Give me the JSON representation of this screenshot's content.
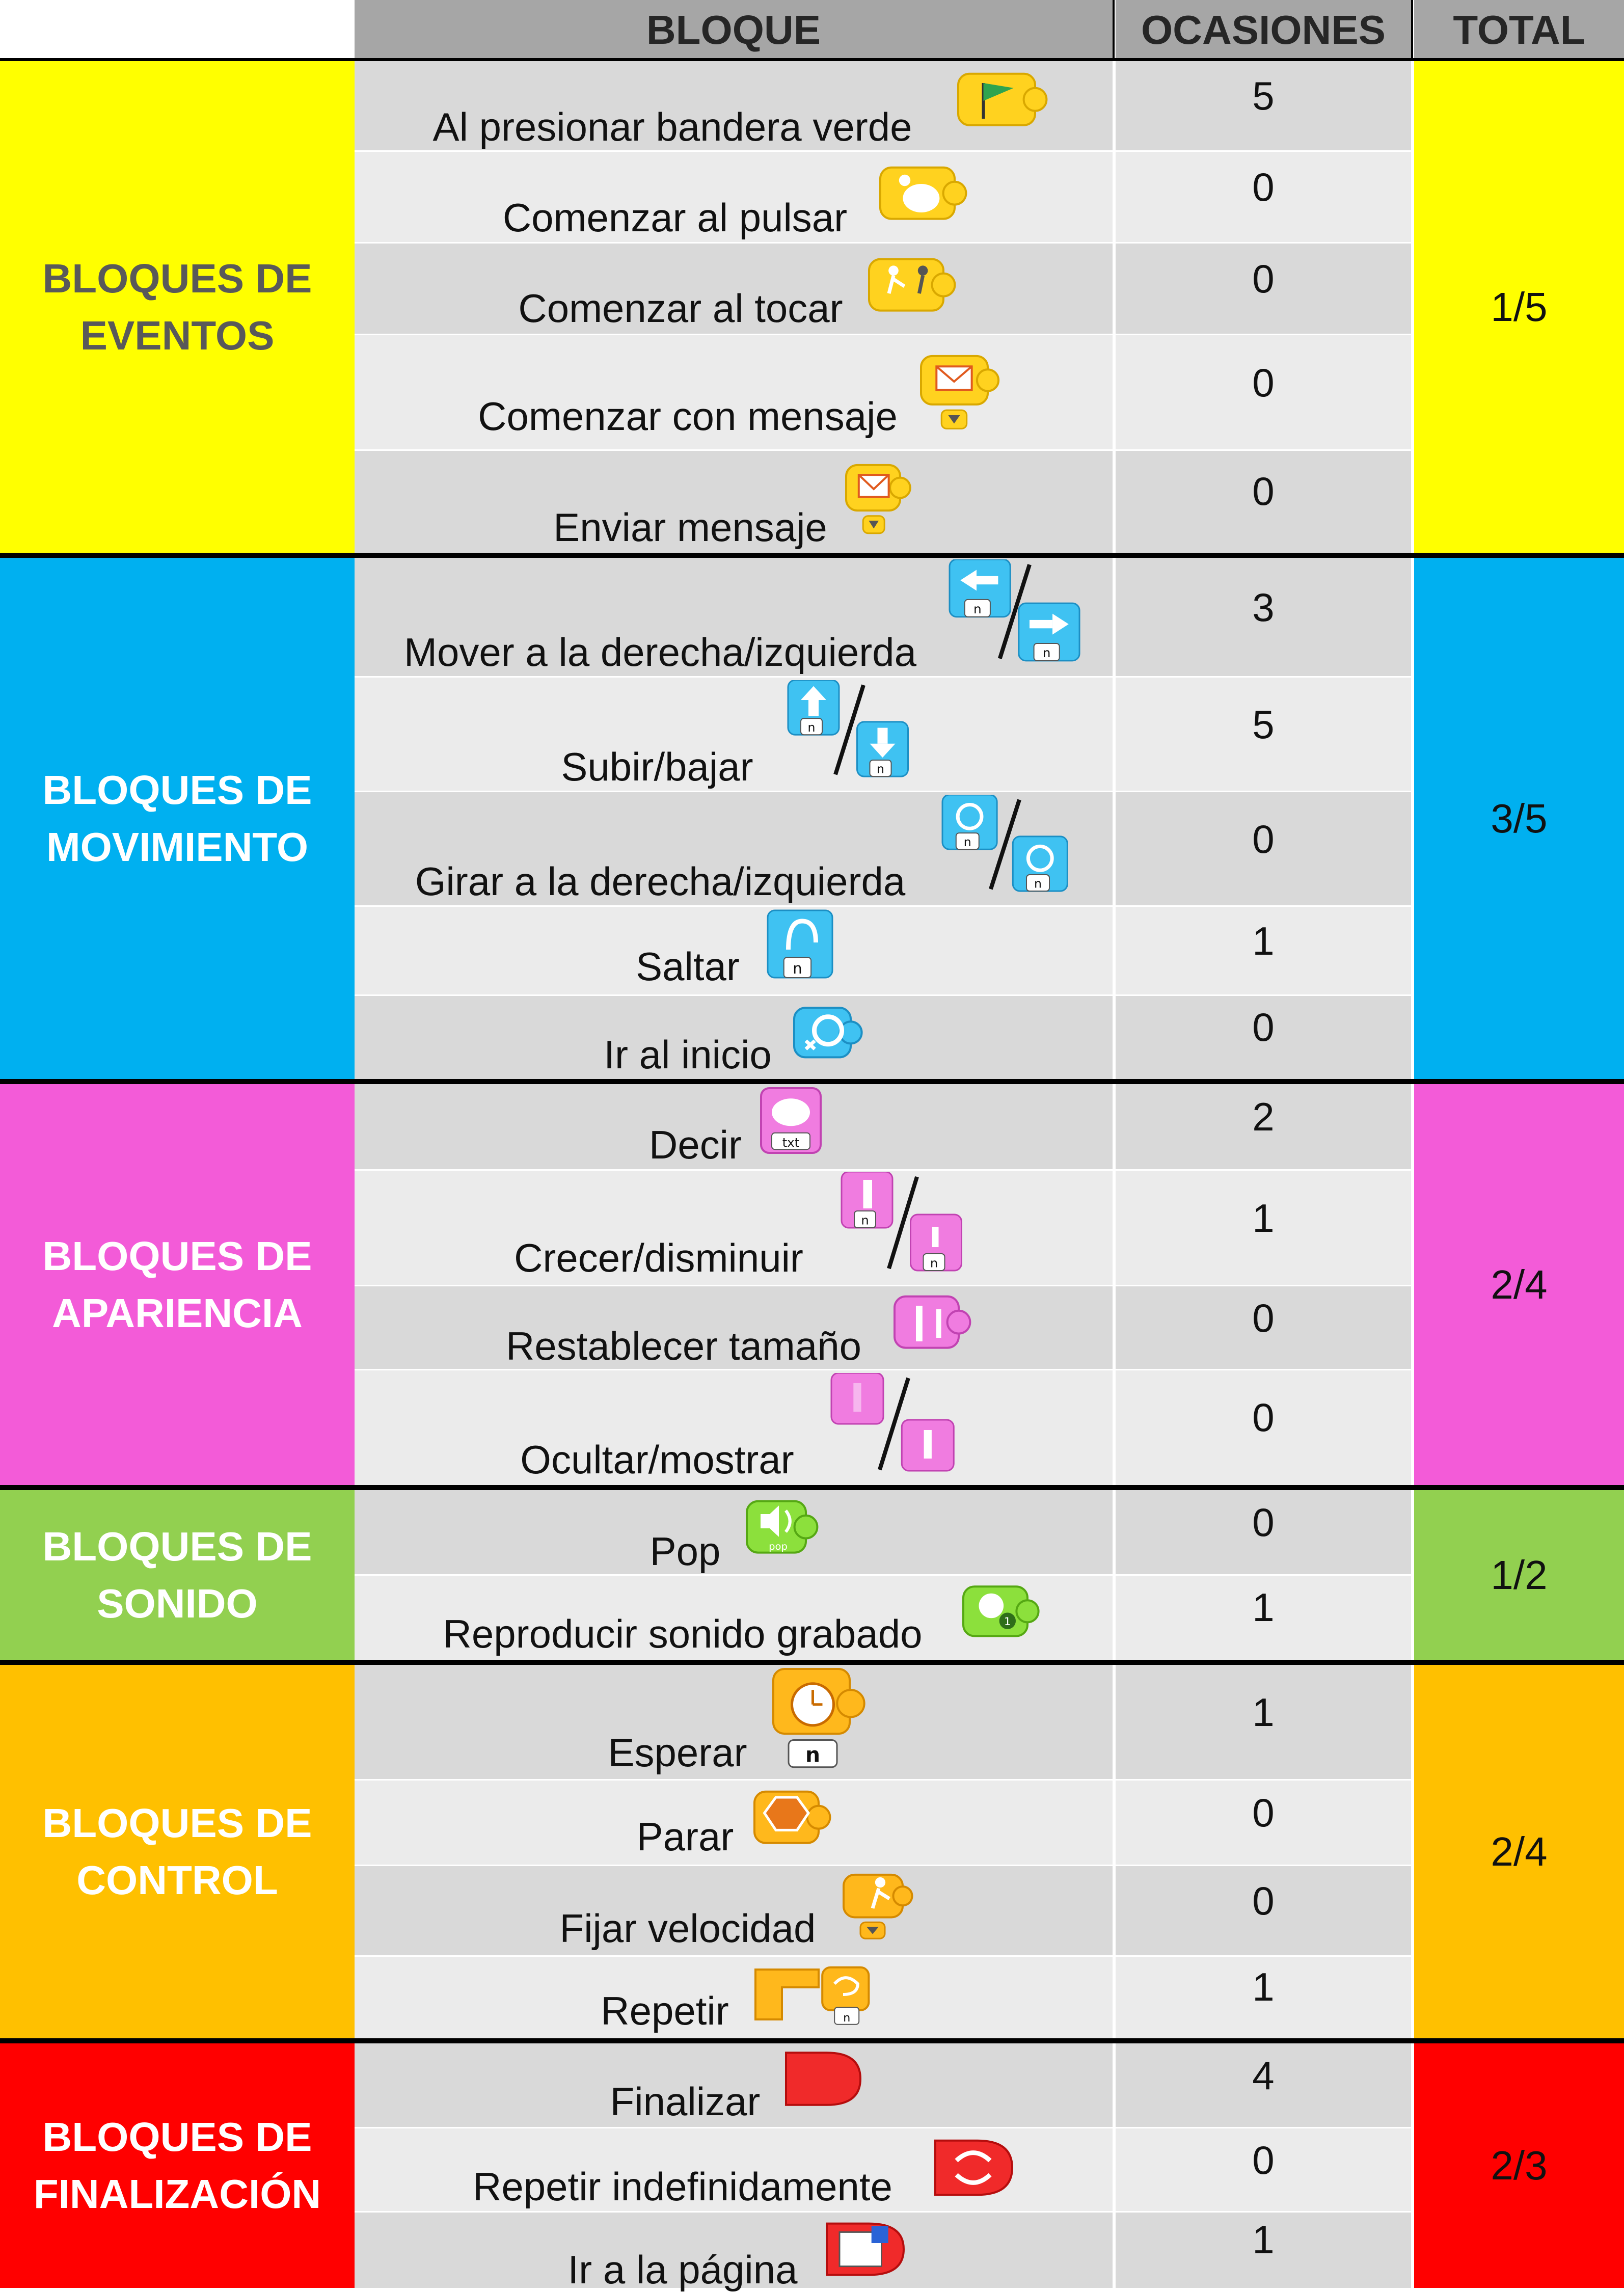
{
  "header": {
    "bloque": "BLOQUE",
    "ocasiones": "OCASIONES",
    "total": "TOTAL"
  },
  "colors": {
    "eventos": "#ffff00",
    "movimiento": "#00b0f0",
    "apariencia": "#f35bd8",
    "sonido": "#92d050",
    "control": "#ffc000",
    "finalizacion": "#ff0000",
    "row_dark": "#d9d9d9",
    "row_light": "#ebebeb"
  },
  "sections": [
    {
      "name": "BLOQUES DE\nEVENTOS",
      "total": "1/5",
      "rows": [
        {
          "label": "Al presionar bandera verde",
          "count": "5",
          "icon": "green-flag-trigger-icon"
        },
        {
          "label": "Comenzar al pulsar",
          "count": "0",
          "icon": "tap-trigger-icon"
        },
        {
          "label": "Comenzar al tocar",
          "count": "0",
          "icon": "bump-trigger-icon"
        },
        {
          "label": "Comenzar con mensaje",
          "count": "0",
          "icon": "receive-message-icon"
        },
        {
          "label": "Enviar mensaje",
          "count": "0",
          "icon": "send-message-icon"
        }
      ]
    },
    {
      "name": "BLOQUES DE\nMOVIMIENTO",
      "total": "3/5",
      "rows": [
        {
          "label": "Mover a la derecha/izquierda",
          "count": "3",
          "icon": "move-left-right-icon"
        },
        {
          "label": "Subir/bajar",
          "count": "5",
          "icon": "move-up-down-icon"
        },
        {
          "label": "Girar a la derecha/izquierda",
          "count": "0",
          "icon": "turn-right-left-icon"
        },
        {
          "label": "Saltar",
          "count": "1",
          "icon": "hop-icon"
        },
        {
          "label": "Ir al inicio",
          "count": "0",
          "icon": "go-home-icon"
        }
      ]
    },
    {
      "name": "BLOQUES DE\nAPARIENCIA",
      "total": "2/4",
      "rows": [
        {
          "label": "Decir",
          "count": "2",
          "icon": "say-bubble-icon"
        },
        {
          "label": "Crecer/disminuir",
          "count": "1",
          "icon": "grow-shrink-icon"
        },
        {
          "label": "Restablecer tamaño",
          "count": "0",
          "icon": "reset-size-icon"
        },
        {
          "label": "Ocultar/mostrar",
          "count": "0",
          "icon": "hide-show-icon"
        }
      ]
    },
    {
      "name": "BLOQUES DE\nSONIDO",
      "total": "1/2",
      "rows": [
        {
          "label": "Pop",
          "count": "0",
          "icon": "pop-sound-icon"
        },
        {
          "label": "Reproducir sonido grabado",
          "count": "1",
          "icon": "play-recorded-sound-icon"
        }
      ]
    },
    {
      "name": "BLOQUES DE\nCONTROL",
      "total": "2/4",
      "rows": [
        {
          "label": "Esperar",
          "count": "1",
          "icon": "wait-timer-icon"
        },
        {
          "label": "Parar",
          "count": "0",
          "icon": "stop-hand-icon"
        },
        {
          "label": "Fijar velocidad",
          "count": "0",
          "icon": "set-speed-icon"
        },
        {
          "label": "Repetir",
          "count": "1",
          "icon": "repeat-loop-icon"
        }
      ]
    },
    {
      "name": "BLOQUES DE\nFINALIZACIÓN",
      "total": "2/3",
      "rows": [
        {
          "label": "Finalizar",
          "count": "4",
          "icon": "end-block-icon"
        },
        {
          "label": "Repetir indefinidamente",
          "count": "0",
          "icon": "repeat-forever-icon"
        },
        {
          "label": "Ir a la página",
          "count": "1",
          "icon": "go-to-page-icon"
        }
      ]
    }
  ]
}
